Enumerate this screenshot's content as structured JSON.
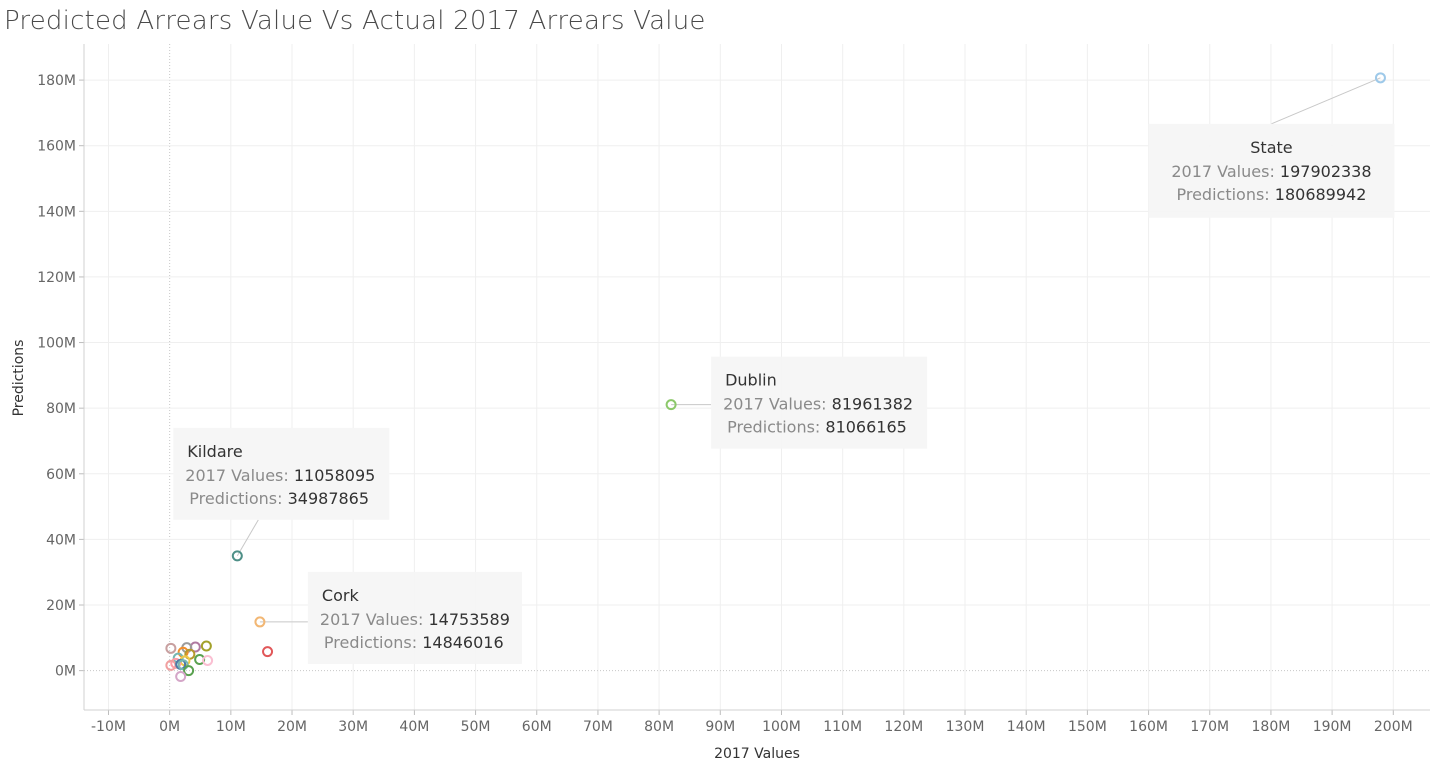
{
  "chart_data": {
    "type": "scatter",
    "title": "Predicted Arrears Value Vs Actual 2017 Arrears Value",
    "xlabel": "2017 Values",
    "ylabel": "Predictions",
    "xlim": [
      -14000000,
      206000000
    ],
    "ylim": [
      -12000000,
      191000000
    ],
    "x_ticks": [
      -10000000,
      0,
      10000000,
      20000000,
      30000000,
      40000000,
      50000000,
      60000000,
      70000000,
      80000000,
      90000000,
      100000000,
      110000000,
      120000000,
      130000000,
      140000000,
      150000000,
      160000000,
      170000000,
      180000000,
      190000000,
      200000000
    ],
    "x_tick_labels": [
      "-10M",
      "0M",
      "10M",
      "20M",
      "30M",
      "40M",
      "50M",
      "60M",
      "70M",
      "80M",
      "90M",
      "100M",
      "110M",
      "120M",
      "130M",
      "140M",
      "150M",
      "160M",
      "170M",
      "180M",
      "190M",
      "200M"
    ],
    "y_ticks": [
      0,
      20000000,
      40000000,
      60000000,
      80000000,
      100000000,
      120000000,
      140000000,
      160000000,
      180000000
    ],
    "y_tick_labels": [
      "0M",
      "20M",
      "40M",
      "60M",
      "80M",
      "100M",
      "120M",
      "140M",
      "160M",
      "180M"
    ],
    "grid": true,
    "tooltip_key_x": "2017 Values:",
    "tooltip_key_y": "Predictions:",
    "labeled_points": [
      {
        "name": "State",
        "x": 197902338,
        "y": 180689942,
        "x_text": "197902338",
        "y_text": "180689942",
        "color": "#9ec9e9",
        "anchor": "below-left"
      },
      {
        "name": "Dublin",
        "x": 81961382,
        "y": 81066165,
        "x_text": "81961382",
        "y_text": "81066165",
        "color": "#8cc86a",
        "anchor": "right"
      },
      {
        "name": "Kildare",
        "x": 11058095,
        "y": 34987865,
        "x_text": "11058095",
        "y_text": "34987865",
        "color": "#4e8f87",
        "anchor": "above"
      },
      {
        "name": "Cork",
        "x": 14753589,
        "y": 14846016,
        "x_text": "14753589",
        "y_text": "14846016",
        "color": "#f2b774",
        "anchor": "right"
      }
    ],
    "unlabeled_points": [
      {
        "x": 16000000,
        "y": 5800000,
        "color": "#e15759"
      },
      {
        "x": 6000000,
        "y": 7500000,
        "color": "#a3a12a"
      },
      {
        "x": 4200000,
        "y": 7200000,
        "color": "#b07aa1"
      },
      {
        "x": 2800000,
        "y": 7000000,
        "color": "#9c9c9c"
      },
      {
        "x": 200000,
        "y": 6800000,
        "color": "#c8a0a0"
      },
      {
        "x": 2200000,
        "y": 5600000,
        "color": "#f28e2b"
      },
      {
        "x": 3300000,
        "y": 5000000,
        "color": "#b6992d"
      },
      {
        "x": 4900000,
        "y": 3400000,
        "color": "#59a14f"
      },
      {
        "x": 6200000,
        "y": 3100000,
        "color": "#fabfd2"
      },
      {
        "x": 1400000,
        "y": 3800000,
        "color": "#76b7b2"
      },
      {
        "x": 2500000,
        "y": 3000000,
        "color": "#edc948"
      },
      {
        "x": 1000000,
        "y": 2200000,
        "color": "#ff9da7"
      },
      {
        "x": 200000,
        "y": 1600000,
        "color": "#f1a0a0"
      },
      {
        "x": 1800000,
        "y": 1900000,
        "color": "#4e79a7"
      },
      {
        "x": 2200000,
        "y": 1800000,
        "color": "#76b7b2"
      },
      {
        "x": 3100000,
        "y": 0,
        "color": "#59a14f"
      },
      {
        "x": 1800000,
        "y": -1800000,
        "color": "#d4a6c8"
      }
    ]
  }
}
